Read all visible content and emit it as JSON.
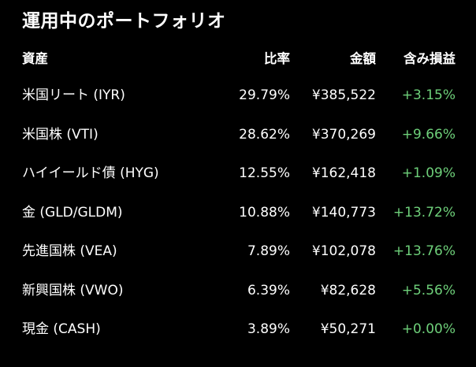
{
  "title": "運用中のポートフォリオ",
  "colors": {
    "background": "#000000",
    "text": "#ffffff",
    "gain_positive": "#6ed07a"
  },
  "columns": {
    "name": "資産",
    "ratio": "比率",
    "value": "金額",
    "gain": "含み損益"
  },
  "rows": [
    {
      "name": "米国リート (IYR)",
      "ratio": "29.79%",
      "value": "¥385,522",
      "gain": "+3.15%"
    },
    {
      "name": "米国株 (VTI)",
      "ratio": "28.62%",
      "value": "¥370,269",
      "gain": "+9.66%"
    },
    {
      "name": "ハイイールド債 (HYG)",
      "ratio": "12.55%",
      "value": "¥162,418",
      "gain": "+1.09%"
    },
    {
      "name": "金 (GLD/GLDM)",
      "ratio": "10.88%",
      "value": "¥140,773",
      "gain": "+13.72%"
    },
    {
      "name": "先進国株 (VEA)",
      "ratio": "7.89%",
      "value": "¥102,078",
      "gain": "+13.76%"
    },
    {
      "name": "新興国株 (VWO)",
      "ratio": "6.39%",
      "value": "¥82,628",
      "gain": "+5.56%"
    },
    {
      "name": "現金 (CASH)",
      "ratio": "3.89%",
      "value": "¥50,271",
      "gain": "+0.00%"
    }
  ]
}
